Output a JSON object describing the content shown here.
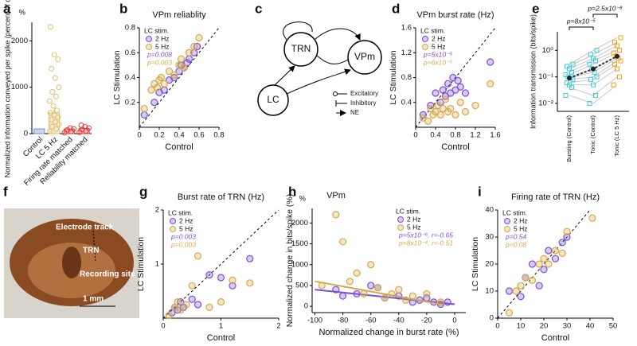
{
  "chart_data": [
    {
      "type": "bar",
      "label": "a",
      "ylabel": "Normalized information conveyed per spike (percent of control)",
      "unit": "%",
      "categories": [
        "Control",
        "LC 5 Hz",
        "Firing rate matched",
        "Reliability matched"
      ],
      "values": [
        100,
        450,
        100,
        110
      ],
      "errors": [
        10,
        90,
        20,
        20
      ],
      "colors": [
        "#6f8fcf",
        "#e0c070",
        "#e04040",
        "#e04040"
      ],
      "points": [
        [],
        [
          50,
          100,
          150,
          200,
          250,
          300,
          350,
          400,
          450,
          500,
          600,
          700,
          800,
          900,
          1000,
          1200,
          1400,
          1600,
          1700,
          2300
        ],
        [
          20,
          50,
          80,
          100,
          120
        ],
        [
          30,
          60,
          90,
          120,
          150,
          180
        ]
      ],
      "ylim": [
        0,
        2400
      ],
      "yticks": [
        0,
        1000,
        2000
      ]
    },
    {
      "type": "scatter",
      "label": "b",
      "title": "VPm reliablity",
      "xlabel": "Control",
      "ylabel": "LC Stimulation",
      "legend_title": "LC stim.",
      "legend": "upper left",
      "diagonal": true,
      "xlim": [
        0,
        0.8
      ],
      "xticks": [
        0,
        0.2,
        0.4,
        0.6,
        0.8
      ],
      "ylim": [
        0,
        0.8
      ],
      "yticks": [
        0.2,
        0.4,
        0.6,
        0.8
      ],
      "series": [
        {
          "name": "2 Hz",
          "color": "#7b4fd6",
          "annotation": "p=0.008",
          "x": [
            0.05,
            0.15,
            0.2,
            0.25,
            0.3,
            0.35,
            0.4,
            0.42,
            0.45,
            0.48,
            0.5,
            0.55,
            0.58
          ],
          "values": [
            0.1,
            0.2,
            0.28,
            0.3,
            0.38,
            0.4,
            0.45,
            0.5,
            0.48,
            0.52,
            0.55,
            0.6,
            0.65
          ]
        },
        {
          "name": "5 Hz",
          "color": "#d4a94a",
          "annotation": "p=0.003",
          "x": [
            0.05,
            0.12,
            0.15,
            0.18,
            0.2,
            0.22,
            0.25,
            0.3,
            0.35,
            0.4,
            0.42,
            0.45,
            0.5,
            0.55,
            0.6
          ],
          "values": [
            0.15,
            0.3,
            0.35,
            0.32,
            0.38,
            0.4,
            0.35,
            0.45,
            0.42,
            0.5,
            0.55,
            0.48,
            0.6,
            0.65,
            0.72
          ]
        }
      ]
    },
    {
      "type": "diagram",
      "label": "c",
      "nodes": [
        "TRN",
        "VPm",
        "LC"
      ],
      "legend": [
        "Excitatory",
        "Inhibitory",
        "NE"
      ]
    },
    {
      "type": "scatter",
      "label": "d",
      "title": "VPm burst rate (Hz)",
      "xlabel": "Control",
      "ylabel": "LC Stimulation",
      "legend_title": "LC stim.",
      "legend": "upper left",
      "diagonal": true,
      "xlim": [
        0,
        1.6
      ],
      "xticks": [
        0,
        0.4,
        0.8,
        1.2,
        1.6
      ],
      "ylim": [
        0,
        1.6
      ],
      "yticks": [
        0.4,
        0.8,
        1.2,
        1.6
      ],
      "series": [
        {
          "name": "2 Hz",
          "color": "#7b4fd6",
          "annotation": "p=5x10⁻⁵",
          "x": [
            0.15,
            0.3,
            0.4,
            0.5,
            0.55,
            0.6,
            0.65,
            0.7,
            0.75,
            0.8,
            0.85,
            0.9,
            1.0,
            1.5
          ],
          "values": [
            0.2,
            0.35,
            0.55,
            0.4,
            0.6,
            0.5,
            0.7,
            0.55,
            0.8,
            0.6,
            0.75,
            0.65,
            0.55,
            1.05
          ]
        },
        {
          "name": "5 Hz",
          "color": "#d4a94a",
          "annotation": "p=6x10⁻⁵",
          "x": [
            0.15,
            0.25,
            0.3,
            0.35,
            0.4,
            0.45,
            0.5,
            0.55,
            0.6,
            0.65,
            0.7,
            0.8,
            0.9,
            1.0,
            1.2,
            1.5
          ],
          "values": [
            0.15,
            0.1,
            0.3,
            0.2,
            0.25,
            0.35,
            0.2,
            0.3,
            0.45,
            0.25,
            0.3,
            0.2,
            0.4,
            0.25,
            0.35,
            0.7
          ]
        }
      ]
    },
    {
      "type": "paired",
      "label": "e",
      "ylabel": "Information transmission (bits/spike)",
      "log": true,
      "categories": [
        "Bursting (Control)",
        "Tonic (Control)",
        "Tonic (LC 5 Hz)"
      ],
      "colors": [
        "#3ccfd6",
        "#3ccfd6",
        "#f0a020"
      ],
      "points": [
        [
          0.02,
          0.04,
          0.05,
          0.06,
          0.08,
          0.09,
          0.1,
          0.12,
          0.15,
          0.2,
          0.25,
          0.3
        ],
        [
          0.01,
          0.02,
          0.05,
          0.08,
          0.1,
          0.15,
          0.2,
          0.3,
          0.4,
          0.5,
          0.7,
          1.0
        ],
        [
          0.05,
          0.1,
          0.2,
          0.3,
          0.4,
          0.5,
          0.6,
          0.8,
          1.0,
          1.5,
          2.0,
          3.0
        ]
      ],
      "means": [
        0.09,
        0.2,
        0.6
      ],
      "annotations": [
        "p=8x10⁻⁵",
        "p=2.5x10⁻⁸"
      ],
      "ylim": [
        0.005,
        5
      ],
      "yticks": [
        {
          "value": 0.01,
          "label": "10⁻²"
        },
        {
          "value": 0.1,
          "label": "10⁻¹"
        },
        {
          "value": 1,
          "label": "10⁰"
        }
      ]
    },
    {
      "type": "image",
      "label": "f",
      "labels": [
        "Electrode track",
        "TRN",
        "Recording site",
        "1 mm"
      ]
    },
    {
      "type": "scatter",
      "label": "g",
      "title": "Burst rate of TRN (Hz)",
      "xlabel": "Control",
      "ylabel": "LC Stimulation",
      "legend_title": "LC stim.",
      "legend": "upper left",
      "diagonal": true,
      "xlim": [
        0,
        2
      ],
      "xticks": [
        0,
        1,
        2
      ],
      "ylim": [
        0,
        2
      ],
      "yticks": [
        1,
        2
      ],
      "series": [
        {
          "name": "2 Hz",
          "color": "#7b4fd6",
          "annotation": "p=0.003",
          "x": [
            0.15,
            0.2,
            0.25,
            0.3,
            0.35,
            0.5,
            0.6,
            0.8,
            1.0,
            1.2,
            1.5
          ],
          "values": [
            0.1,
            0.2,
            0.15,
            0.3,
            0.2,
            0.35,
            0.25,
            0.8,
            0.75,
            0.6,
            1.1
          ]
        },
        {
          "name": "5 Hz",
          "color": "#d4a94a",
          "annotation": "p=0.003",
          "x": [
            0.1,
            0.2,
            0.25,
            0.3,
            0.4,
            0.5,
            0.6,
            0.8,
            1.0,
            1.2,
            1.5
          ],
          "values": [
            0.05,
            0.2,
            0.3,
            0.15,
            0.25,
            0.6,
            1.15,
            0.2,
            0.3,
            0.7,
            0.65
          ]
        }
      ]
    },
    {
      "type": "scatter",
      "label": "h",
      "title": "VPm",
      "unit": "%",
      "xlabel": "Normalized change in burst rate (%)",
      "ylabel": "Normalized change in bits/spike (%)",
      "legend_title": "LC stim.",
      "legend": "upper right",
      "diagonal": false,
      "xlim": [
        -102,
        8
      ],
      "xticks": [
        -100,
        -80,
        -60,
        -40,
        -20,
        0
      ],
      "ylim": [
        -150,
        2350
      ],
      "yticks": [
        0,
        500,
        1000,
        1500,
        2000
      ],
      "series": [
        {
          "name": "2 Hz",
          "color": "#7b4fd6",
          "annotation": "p=5x10⁻⁶,  r=-0.65",
          "x": [
            -85,
            -80,
            -70,
            -60,
            -55,
            -50,
            -40,
            -30,
            -25,
            -20,
            -15,
            -10,
            -5
          ],
          "values": [
            400,
            250,
            300,
            500,
            450,
            200,
            250,
            100,
            150,
            200,
            100,
            50,
            100
          ],
          "fit": {
            "x": [
              -100,
              0
            ],
            "y": [
              400,
              50
            ]
          }
        },
        {
          "name": "5 Hz",
          "color": "#d4a94a",
          "annotation": "p=8x10⁻⁴,  r=-0.51",
          "x": [
            -95,
            -85,
            -80,
            -75,
            -70,
            -65,
            -60,
            -55,
            -50,
            -45,
            -40,
            -35,
            -30,
            -20,
            -10
          ],
          "values": [
            500,
            2200,
            1550,
            600,
            800,
            300,
            1000,
            450,
            200,
            300,
            400,
            150,
            250,
            300,
            100
          ],
          "fit": {
            "x": [
              -100,
              -10
            ],
            "y": [
              600,
              50
            ]
          }
        }
      ]
    },
    {
      "type": "scatter",
      "label": "i",
      "title": "Firing rate of TRN (Hz)",
      "xlabel": "Control",
      "ylabel": "LC Stimulation",
      "legend_title": "LC stim.",
      "legend": "upper left",
      "diagonal": true,
      "xlim": [
        0,
        50
      ],
      "xticks": [
        0,
        10,
        20,
        30,
        40,
        50
      ],
      "ylim": [
        0,
        40
      ],
      "yticks": [
        0,
        10,
        20,
        30,
        40
      ],
      "series": [
        {
          "name": "2 Hz",
          "color": "#7b4fd6",
          "annotation": "p=0.54",
          "x": [
            5,
            10,
            12,
            15,
            18,
            20,
            22,
            25,
            28,
            30
          ],
          "values": [
            10,
            8,
            15,
            20,
            12,
            18,
            25,
            22,
            28,
            30
          ]
        },
        {
          "name": "5 Hz",
          "color": "#d4a94a",
          "annotation": "p=0.08",
          "x": [
            5,
            8,
            10,
            12,
            15,
            18,
            20,
            22,
            25,
            28,
            30,
            41
          ],
          "values": [
            2,
            10,
            12,
            15,
            14,
            20,
            22,
            20,
            25,
            24,
            32,
            37
          ]
        }
      ]
    }
  ]
}
